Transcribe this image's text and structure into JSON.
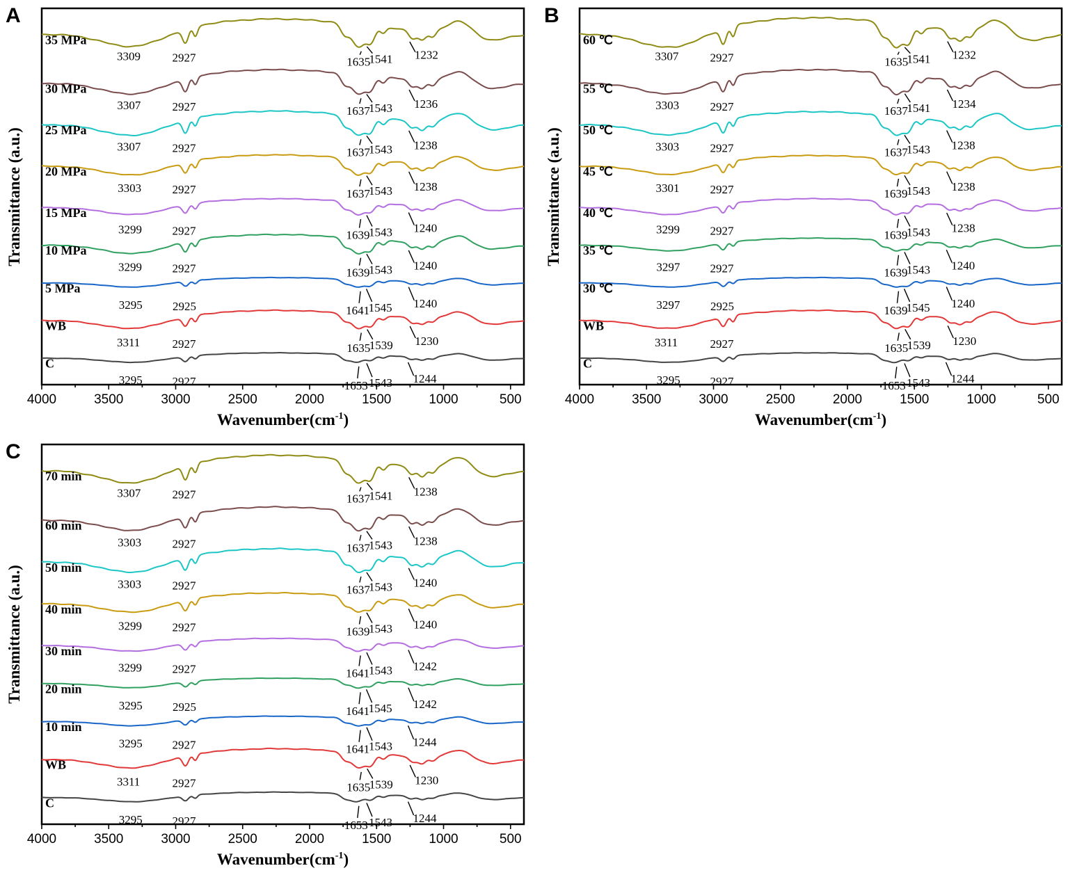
{
  "colors": {
    "olive": "#8f8b14",
    "brown": "#7a4c4c",
    "cyan": "#1cc6c6",
    "gold": "#c89b10",
    "purple": "#b46ee0",
    "green": "#30a060",
    "blue": "#1866c8",
    "red": "#e23838",
    "gray": "#444444"
  },
  "chart_data": [
    {
      "type": "line",
      "panel": "A",
      "title": "",
      "xlabel": "Wavenumber(cm",
      "xlabel_sup": "-1",
      "xlabel_close": ")",
      "ylabel": "Transmittance (a.u.)",
      "xlim": [
        4000,
        400
      ],
      "x_ticks": [
        4000,
        3500,
        3000,
        2500,
        2000,
        1500,
        1000,
        500
      ],
      "series": [
        {
          "name": "35 MPa",
          "color": "olive",
          "depth": 1.3,
          "peaks": [
            3309,
            2927,
            1635,
            1541,
            1232
          ]
        },
        {
          "name": "30 MPa",
          "color": "brown",
          "depth": 1.15,
          "peaks": [
            3307,
            2927,
            1637,
            1543,
            1236
          ]
        },
        {
          "name": "25 MPa",
          "color": "cyan",
          "depth": 1.15,
          "peaks": [
            3307,
            2927,
            1637,
            1543,
            1238
          ]
        },
        {
          "name": "20 MPa",
          "color": "gold",
          "depth": 0.95,
          "peaks": [
            3303,
            2927,
            1637,
            1543,
            1238
          ]
        },
        {
          "name": "15 MPa",
          "color": "purple",
          "depth": 0.75,
          "peaks": [
            3299,
            2927,
            1639,
            1543,
            1240
          ]
        },
        {
          "name": "10 MPa",
          "color": "green",
          "depth": 0.9,
          "peaks": [
            3299,
            2927,
            1639,
            1543,
            1240
          ]
        },
        {
          "name": "5  MPa",
          "color": "blue",
          "depth": 0.45,
          "peaks": [
            3295,
            2925,
            1641,
            1545,
            1240
          ]
        },
        {
          "name": "WB",
          "color": "red",
          "depth": 0.85,
          "peaks": [
            3311,
            2927,
            1635,
            1539,
            1230
          ]
        },
        {
          "name": "C",
          "color": "gray",
          "depth": 0.45,
          "peaks": [
            3295,
            2927,
            1653,
            1543,
            1244
          ]
        }
      ]
    },
    {
      "type": "line",
      "panel": "B",
      "title": "",
      "xlabel": "Wavenumber(cm",
      "xlabel_sup": "-1",
      "xlabel_close": ")",
      "ylabel": "Transmittance (a.u.)",
      "xlim": [
        4000,
        400
      ],
      "x_ticks": [
        4000,
        3500,
        3000,
        2500,
        2000,
        1500,
        1000,
        500
      ],
      "series": [
        {
          "name": "60 ℃",
          "color": "olive",
          "depth": 1.4,
          "peaks": [
            3307,
            2927,
            1635,
            1541,
            1232
          ]
        },
        {
          "name": "55 ℃",
          "color": "brown",
          "depth": 1.15,
          "peaks": [
            3303,
            2927,
            1637,
            1541,
            1234
          ]
        },
        {
          "name": "50 ℃",
          "color": "cyan",
          "depth": 1.1,
          "peaks": [
            3303,
            2927,
            1637,
            1543,
            1238
          ]
        },
        {
          "name": "45 ℃",
          "color": "gold",
          "depth": 0.9,
          "peaks": [
            3301,
            2927,
            1639,
            1543,
            1238
          ]
        },
        {
          "name": "40 ℃",
          "color": "purple",
          "depth": 0.75,
          "peaks": [
            3299,
            2927,
            1639,
            1543,
            1238
          ]
        },
        {
          "name": "35 ℃",
          "color": "green",
          "depth": 0.6,
          "peaks": [
            3297,
            2927,
            1639,
            1543,
            1240
          ]
        },
        {
          "name": "30 ℃",
          "color": "blue",
          "depth": 0.45,
          "peaks": [
            3297,
            2925,
            1639,
            1545,
            1240
          ]
        },
        {
          "name": "WB",
          "color": "red",
          "depth": 0.85,
          "peaks": [
            3311,
            2927,
            1635,
            1539,
            1230
          ]
        },
        {
          "name": "C",
          "color": "gray",
          "depth": 0.45,
          "peaks": [
            3295,
            2927,
            1653,
            1543,
            1244
          ]
        }
      ]
    },
    {
      "type": "line",
      "panel": "C",
      "title": "",
      "xlabel": "Wavenumber(cm",
      "xlabel_sup": "-1",
      "xlabel_close": ")",
      "ylabel": "Transmittance (a.u.)",
      "xlim": [
        4000,
        400
      ],
      "x_ticks": [
        4000,
        3500,
        3000,
        2500,
        2000,
        1500,
        1000,
        500
      ],
      "series": [
        {
          "name": "70 min",
          "color": "olive",
          "depth": 1.3,
          "peaks": [
            3307,
            2927,
            1637,
            1541,
            1238
          ]
        },
        {
          "name": "60 min",
          "color": "brown",
          "depth": 1.1,
          "peaks": [
            3303,
            2927,
            1637,
            1543,
            1238
          ]
        },
        {
          "name": "50 min",
          "color": "cyan",
          "depth": 1.1,
          "peaks": [
            3303,
            2927,
            1637,
            1543,
            1240
          ]
        },
        {
          "name": "40 min",
          "color": "gold",
          "depth": 0.9,
          "peaks": [
            3299,
            2927,
            1639,
            1543,
            1240
          ]
        },
        {
          "name": "30 min",
          "color": "purple",
          "depth": 0.6,
          "peaks": [
            3299,
            2927,
            1641,
            1543,
            1242
          ]
        },
        {
          "name": "20 min",
          "color": "green",
          "depth": 0.45,
          "peaks": [
            3295,
            2925,
            1641,
            1545,
            1242
          ]
        },
        {
          "name": "10 min",
          "color": "blue",
          "depth": 0.45,
          "peaks": [
            3295,
            2927,
            1641,
            1543,
            1244
          ]
        },
        {
          "name": "WB",
          "color": "red",
          "depth": 0.9,
          "peaks": [
            3311,
            2927,
            1635,
            1539,
            1230
          ]
        },
        {
          "name": "C",
          "color": "gray",
          "depth": 0.45,
          "peaks": [
            3295,
            2927,
            1653,
            1543,
            1244
          ]
        }
      ]
    }
  ]
}
